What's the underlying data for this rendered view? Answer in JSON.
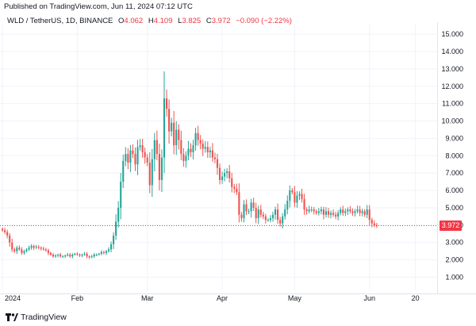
{
  "header": {
    "published": "Published on TradingView.com, Jun 11, 2024 07:12 UTC"
  },
  "legend": {
    "symbol": "WLD / TetherUS, 1D, BINANCE",
    "o_label": "O",
    "o_value": "4.062",
    "h_label": "H",
    "h_value": "4.109",
    "l_label": "L",
    "l_value": "3.825",
    "c_label": "C",
    "c_value": "3.972",
    "change": "−0.090 (−2.22%)"
  },
  "footer": {
    "brand": "TradingView"
  },
  "colors": {
    "up": "#26a69a",
    "down": "#ef5350",
    "last_price": "#f23645",
    "axis_text": "#131722",
    "grid": "#f0f3fa"
  },
  "chart_data": {
    "type": "candlestick",
    "symbol": "WLD / TetherUS",
    "interval": "1D",
    "exchange": "BINANCE",
    "last_price": "3.972",
    "y_ticks": [
      "1.000",
      "2.000",
      "3.000",
      "4.000",
      "5.000",
      "6.000",
      "7.000",
      "8.000",
      "9.000",
      "10.000",
      "11.000",
      "12.000",
      "13.000",
      "14.000",
      "15.000"
    ],
    "ylim": [
      0.2,
      15.6
    ],
    "x_ticks": [
      {
        "label": "2024",
        "day": 0
      },
      {
        "label": "Feb",
        "day": 31
      },
      {
        "label": "Mar",
        "day": 60
      },
      {
        "label": "Apr",
        "day": 91
      },
      {
        "label": "May",
        "day": 121
      },
      {
        "label": "Jun",
        "day": 152
      },
      {
        "label": "20",
        "day": 171
      }
    ],
    "xlim": [
      -1,
      180
    ],
    "close_series": [
      3.7,
      3.6,
      3.4,
      3.0,
      2.6,
      2.5,
      2.7,
      2.6,
      2.4,
      2.5,
      2.6,
      2.7,
      2.8,
      2.7,
      2.75,
      2.7,
      2.65,
      2.6,
      2.55,
      2.4,
      2.3,
      2.2,
      2.25,
      2.3,
      2.2,
      2.2,
      2.25,
      2.3,
      2.2,
      2.3,
      2.35,
      2.3,
      2.25,
      2.3,
      2.35,
      2.2,
      2.15,
      2.2,
      2.3,
      2.3,
      2.35,
      2.45,
      2.4,
      2.5,
      2.6,
      2.9,
      3.4,
      4.2,
      5.0,
      6.5,
      7.7,
      8.1,
      7.6,
      8.3,
      8.1,
      7.5,
      8.5,
      8.6,
      8.2,
      7.9,
      7.6,
      6.3,
      7.8,
      8.9,
      8.1,
      6.6,
      7.9,
      11.3,
      10.7,
      9.4,
      9.9,
      8.6,
      9.5,
      8.9,
      8.1,
      7.7,
      8.0,
      8.4,
      8.2,
      8.6,
      9.3,
      8.9,
      8.7,
      8.4,
      8.5,
      8.2,
      8.3,
      7.9,
      7.8,
      7.3,
      6.6,
      6.8,
      7.0,
      7.1,
      6.7,
      6.2,
      6.1,
      5.9,
      4.6,
      4.4,
      5.2,
      4.8,
      4.8,
      5.3,
      5.0,
      4.4,
      4.9,
      4.6,
      4.5,
      4.3,
      4.3,
      4.4,
      4.6,
      4.9,
      4.3,
      4.1,
      4.5,
      4.9,
      5.4,
      6.0,
      5.9,
      5.3,
      5.7,
      5.8,
      5.5,
      4.9,
      4.8,
      4.9,
      4.9,
      4.8,
      4.7,
      4.8,
      4.9,
      4.6,
      4.8,
      4.6,
      4.7,
      4.6,
      4.5,
      4.7,
      4.9,
      4.7,
      4.8,
      4.9,
      4.8,
      4.7,
      4.8,
      4.9,
      4.7,
      4.8,
      4.6,
      4.9,
      4.3,
      4.1,
      4.0,
      3.97
    ]
  }
}
